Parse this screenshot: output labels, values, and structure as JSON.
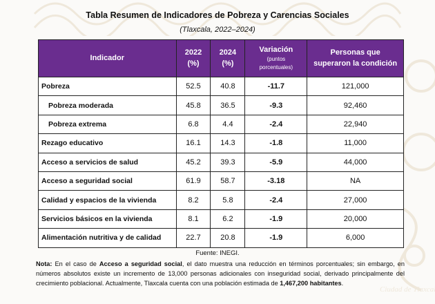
{
  "title": "Tabla Resumen de Indicadores de Pobreza y Carencias Sociales",
  "subtitle": "(Tlaxcala, 2022–2024)",
  "headers": {
    "indicador": "Indicador",
    "y2022_line1": "2022",
    "y2022_line2": "(%)",
    "y2024_line1": "2024",
    "y2024_line2": "(%)",
    "variacion_line1": "Variación",
    "variacion_line2": "(puntos",
    "variacion_line3": "porcentuales)",
    "personas_line1": "Personas que",
    "personas_line2": "superaron la condición"
  },
  "rows": [
    {
      "indicador": "Pobreza",
      "y2022": "52.5",
      "y2024": "40.8",
      "variacion": "-11.7",
      "personas": "121,000",
      "sub": false
    },
    {
      "indicador": "Pobreza moderada",
      "y2022": "45.8",
      "y2024": "36.5",
      "variacion": "-9.3",
      "personas": "92,460",
      "sub": true
    },
    {
      "indicador": "Pobreza extrema",
      "y2022": "6.8",
      "y2024": "4.4",
      "variacion": "-2.4",
      "personas": "22,940",
      "sub": true
    },
    {
      "indicador": "Rezago educativo",
      "y2022": "16.1",
      "y2024": "14.3",
      "variacion": "-1.8",
      "personas": "11,000",
      "sub": false
    },
    {
      "indicador": "Acceso a servicios de salud",
      "y2022": "45.2",
      "y2024": "39.3",
      "variacion": "-5.9",
      "personas": "44,000",
      "sub": false
    },
    {
      "indicador": "Acceso a seguridad social",
      "y2022": "61.9",
      "y2024": "58.7",
      "variacion": "-3.18",
      "personas": "NA",
      "sub": false
    },
    {
      "indicador": "Calidad y espacios de la vivienda",
      "y2022": "8.2",
      "y2024": "5.8",
      "variacion": "-2.4",
      "personas": "27,000",
      "sub": false
    },
    {
      "indicador": "Servicios básicos en la vivienda",
      "y2022": "8.1",
      "y2024": "6.2",
      "variacion": "-1.9",
      "personas": "20,000",
      "sub": false
    },
    {
      "indicador": "Alimentación nutritiva y de calidad",
      "y2022": "22.7",
      "y2024": "20.8",
      "variacion": "-1.9",
      "personas": "6,000",
      "sub": false
    }
  ],
  "source": "Fuente: INEGI.",
  "note": {
    "label": "Nota:",
    "part1": " En el caso de ",
    "bold1": "Acceso a seguridad social",
    "part2": ", el dato muestra una reducción en términos porcentuales; sin embargo, en números absolutos existe un incremento de 13,000 personas adicionales con inseguridad social, derivado principalmente del crecimiento poblacional. Actualmente, Tlaxcala cuenta con una población estimada de ",
    "bold2": "1,467,200 habitantes",
    "part3": "."
  },
  "colors": {
    "header_bg": "#6a2d8f",
    "header_text": "#ffffff",
    "watermark": "#d9c7a8"
  },
  "watermark_text": "Ciudad de Tlaxcala"
}
